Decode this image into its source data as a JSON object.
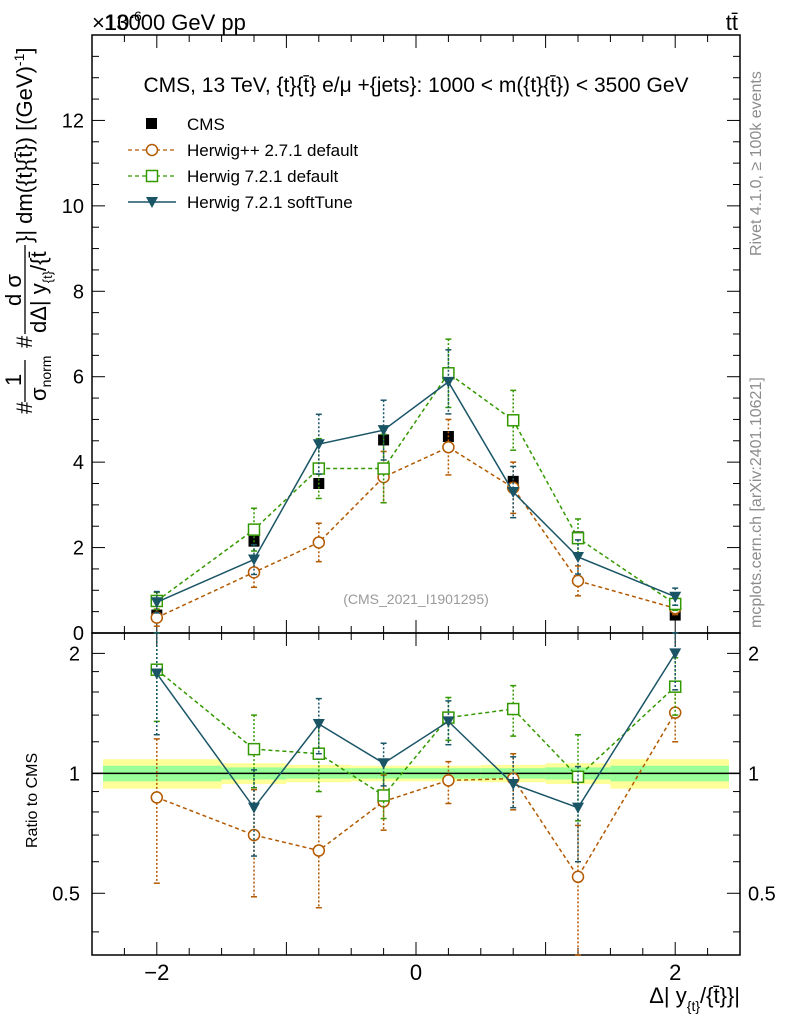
{
  "header": {
    "left_label": "13000 GeV pp",
    "exponent_label": "×10",
    "exponent_power": "-6",
    "right_label": "tt̄"
  },
  "side_labels": {
    "rivet": "Rivet 4.1.0, ≥ 100k events",
    "mcplots": "mcplots.cern.ch [arXiv:2401.10621]"
  },
  "colors": {
    "cms": "#000000",
    "herwigpp": "#b35900",
    "herwig721": "#339900",
    "softtune": "#1a5566",
    "band_yellow": "#ffff99",
    "band_green": "#99ff99"
  },
  "chart_data": [
    {
      "type": "scatter",
      "title": "CMS, 13 TeV, {t}{t̄} e/μ +{jets}: 1000 < m({t}{t̄}) < 3500 GeV",
      "watermark": "(CMS_2021_I1901295)",
      "ylabel": "#1/σ_norm #dσ/dΔ| y_{t}/{t̄}| dm({t}{t̄}) [(GeV)^-1]",
      "ylabel_parts": {
        "hash1": "#",
        "one": "1",
        "sigma": "σ",
        "norm": "norm",
        "hash2": "#",
        "dsigma": "d σ",
        "den": "dΔ| y",
        "den_sub": "{t}",
        "den_tail": "/{t̄",
        "tail": "}| dm({t}{t̄}) [(GeV)",
        "tail_sup": "-1",
        "tail_end": "]"
      },
      "ylim": [
        0,
        14
      ],
      "yticks": [
        0,
        2,
        4,
        6,
        8,
        10,
        12
      ],
      "xlim": [
        -2.5,
        2.5
      ],
      "legend_position": "top-left",
      "series": [
        {
          "name": "CMS",
          "marker": "square-filled",
          "x": [
            -2,
            -1.25,
            -0.75,
            -0.25,
            0.25,
            0.75,
            1.25,
            2
          ],
          "y": [
            0.42,
            2.15,
            3.5,
            4.52,
            4.6,
            3.55,
            2.25,
            0.42
          ]
        },
        {
          "name": "Herwig++ 2.7.1 default",
          "marker": "circle-open",
          "dash": true,
          "x": [
            -2,
            -1.25,
            -0.75,
            -0.25,
            0.25,
            0.75,
            1.25,
            2
          ],
          "y": [
            0.36,
            1.42,
            2.12,
            3.65,
            4.35,
            3.4,
            1.22,
            0.58
          ],
          "err": [
            0.2,
            0.35,
            0.45,
            0.6,
            0.65,
            0.6,
            0.35,
            0.15
          ]
        },
        {
          "name": "Herwig 7.2.1 default",
          "marker": "square-open",
          "dash": true,
          "x": [
            -2,
            -1.25,
            -0.75,
            -0.25,
            0.25,
            0.75,
            1.25,
            2
          ],
          "y": [
            0.75,
            2.42,
            3.85,
            3.85,
            6.08,
            4.98,
            2.22,
            0.68
          ],
          "err": [
            0.2,
            0.5,
            0.7,
            0.8,
            0.8,
            0.7,
            0.45,
            0.15
          ]
        },
        {
          "name": "Herwig 7.2.1 softTune",
          "marker": "triangle-down-filled",
          "dash": false,
          "x": [
            -2,
            -1.25,
            -0.75,
            -0.25,
            0.25,
            0.75,
            1.25,
            2
          ],
          "y": [
            0.72,
            1.72,
            4.42,
            4.75,
            5.88,
            3.3,
            1.78,
            0.85
          ],
          "err": [
            0.25,
            0.35,
            0.7,
            0.7,
            0.75,
            0.6,
            0.4,
            0.2
          ]
        }
      ]
    },
    {
      "type": "scatter",
      "ylabel": "Ratio to CMS",
      "ylim": [
        0.35,
        2.25
      ],
      "yticks": [
        0.5,
        1,
        2
      ],
      "yticklabels": [
        "0.5",
        "1",
        "2"
      ],
      "xlim": [
        -2.5,
        2.5
      ],
      "xticks": [
        -2,
        0,
        2
      ],
      "xticklabels": [
        "−2",
        "0",
        "2"
      ],
      "xlabel": "Δ| y",
      "xlabel_sub": "{t}",
      "xlabel_tail": "/{t̄}}|",
      "bands": {
        "edges": [
          -2.5,
          -1.5,
          -1.0,
          -0.5,
          0,
          0.5,
          1.0,
          1.5,
          2.5
        ],
        "yellow_half": [
          0.085,
          0.06,
          0.05,
          0.045,
          0.045,
          0.05,
          0.06,
          0.085
        ],
        "green_half": [
          0.045,
          0.035,
          0.03,
          0.03,
          0.03,
          0.03,
          0.035,
          0.045
        ]
      },
      "series": [
        {
          "name": "Herwig++ 2.7.1 default",
          "marker": "circle-open",
          "dash": true,
          "x": [
            -2,
            -1.25,
            -0.75,
            -0.25,
            0.25,
            0.75,
            1.25,
            2
          ],
          "y": [
            0.87,
            0.7,
            0.64,
            0.85,
            0.96,
            0.97,
            0.55,
            1.42
          ],
          "lo": [
            0.53,
            0.49,
            0.46,
            0.72,
            0.84,
            0.81,
            0.35,
            1.2
          ],
          "hi": [
            1.22,
            0.91,
            0.78,
            0.99,
            1.07,
            1.12,
            0.74,
            1.66
          ]
        },
        {
          "name": "Herwig 7.2.1 default",
          "marker": "square-open",
          "dash": true,
          "x": [
            -2,
            -1.25,
            -0.75,
            -0.25,
            0.25,
            0.75,
            1.25,
            2
          ],
          "y": [
            1.82,
            1.15,
            1.12,
            0.88,
            1.38,
            1.45,
            0.98,
            1.65
          ],
          "lo": [
            1.35,
            0.92,
            0.9,
            0.77,
            1.21,
            1.24,
            0.76,
            1.4
          ],
          "hi": [
            2.3,
            1.4,
            1.35,
            1.0,
            1.55,
            1.66,
            1.25,
            1.95
          ]
        },
        {
          "name": "Herwig 7.2.1 softTune",
          "marker": "triangle-down-filled",
          "dash": false,
          "x": [
            -2,
            -1.25,
            -0.75,
            -0.25,
            0.25,
            0.75,
            1.25,
            2
          ],
          "y": [
            1.78,
            0.82,
            1.33,
            1.06,
            1.35,
            0.94,
            0.82,
            2.0
          ],
          "lo": [
            1.25,
            0.62,
            1.12,
            0.93,
            1.18,
            0.82,
            0.6,
            1.62
          ],
          "hi": [
            2.35,
            1.02,
            1.54,
            1.19,
            1.52,
            1.1,
            1.04,
            2.42
          ]
        }
      ]
    }
  ]
}
